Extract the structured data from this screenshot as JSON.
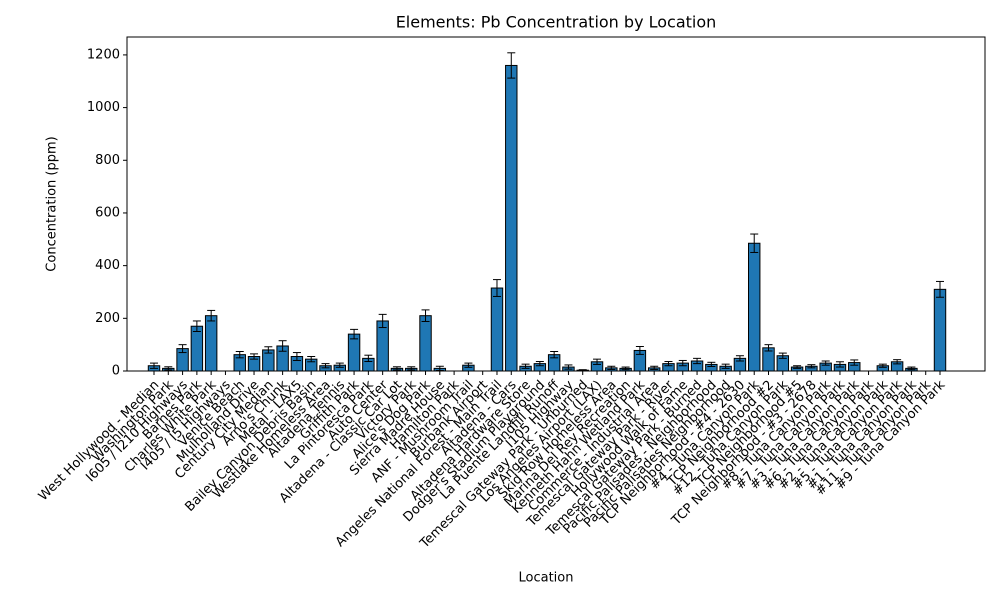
{
  "chart_data": {
    "type": "bar",
    "title": "Elements: Pb Concentration by Location",
    "xlabel": "Location",
    "ylabel": "Concentration (ppm)",
    "categories": [
      "West Hollywood - Median",
      "Washington Park",
      "I605 / I210 Highways",
      "Barnes Park",
      "Charles White Park",
      "I405 / I5 Highways",
      "Venice Beach",
      "Mulholland Drive",
      "Century City Median",
      "Arno's Chunk",
      "Metal - LAX5",
      "Bailey Canyon Debris Basin",
      "Westlake Homeless Area",
      "Altadena Tennis",
      "Griffith Park",
      "La Pintoresca Park",
      "Auto Center",
      "Altadena - Classic Car Lot",
      "Victory Park",
      "Alice's Dog Park",
      "Sierra Madre House",
      "Hamilton Park",
      "ANF - Mushroom Trail",
      "Burbank Airport",
      "Angeles National Forest - Main Trail",
      "Altadena - Cars",
      "Altadena Hardware Store",
      "Dodger's Stadium Playground",
      "La Puente Landfill Runoff",
      "I105 Highway",
      "Temescal Gateway Park - Unburned",
      "Los Angeles Airport (LAX)",
      "Skid Row Homeless Area",
      "Marina Del Rey Recreation",
      "Kenneth Hahn Wetland Park",
      "Commerce - Industrial Area",
      "Temescal Gateway Park - River",
      "Hollywood Walk of Fame",
      "Temescal Gateway Park - Burned",
      "Pacific Palisades - Neighborhood",
      "Pacific Palisades Neighborhood",
      "TCP Neighborhood - #4 - 2630",
      "#4 - Tuna Canyon Park",
      "TCP Neighborhood #2",
      "#12 - Tuna Canyon Park",
      "TCP Neighborhood #5",
      "TCP Neighborhood - #3 - 2678",
      "#8 - Tuna Canyon Park",
      "#7 - Tuna Canyon Park",
      "#3 - Tuna Canyon Park",
      "#6 - Tuna Canyon Park",
      "#2 - Tuna Canyon Park",
      "#5 - Tuna Canyon Park",
      "#1 - Tuna Canyon Park",
      "#11 - Tuna Canyon Park",
      "#9 - Tuna Canyon Park"
    ],
    "values": [
      20,
      10,
      85,
      170,
      210,
      0,
      62,
      55,
      80,
      95,
      55,
      45,
      20,
      22,
      140,
      48,
      190,
      10,
      10,
      210,
      10,
      0,
      22,
      0,
      315,
      1160,
      18,
      28,
      62,
      15,
      3,
      35,
      12,
      10,
      78,
      12,
      28,
      30,
      38,
      25,
      18,
      48,
      485,
      88,
      58,
      15,
      18,
      30,
      25,
      32,
      0,
      20,
      35,
      10,
      0,
      310
    ],
    "errors": [
      10,
      6,
      15,
      20,
      20,
      0,
      12,
      10,
      12,
      20,
      15,
      10,
      8,
      8,
      18,
      12,
      25,
      6,
      6,
      22,
      8,
      0,
      8,
      0,
      32,
      48,
      8,
      8,
      12,
      8,
      2,
      10,
      6,
      5,
      15,
      6,
      8,
      10,
      10,
      8,
      8,
      10,
      35,
      12,
      10,
      5,
      6,
      8,
      10,
      10,
      0,
      6,
      8,
      5,
      0,
      30
    ],
    "color": "#1f77b4",
    "edgecolor": "#000000",
    "ylim": [
      0,
      1268
    ],
    "yticks": [
      0,
      200,
      400,
      600,
      800,
      1000,
      1200
    ],
    "grid": false
  }
}
